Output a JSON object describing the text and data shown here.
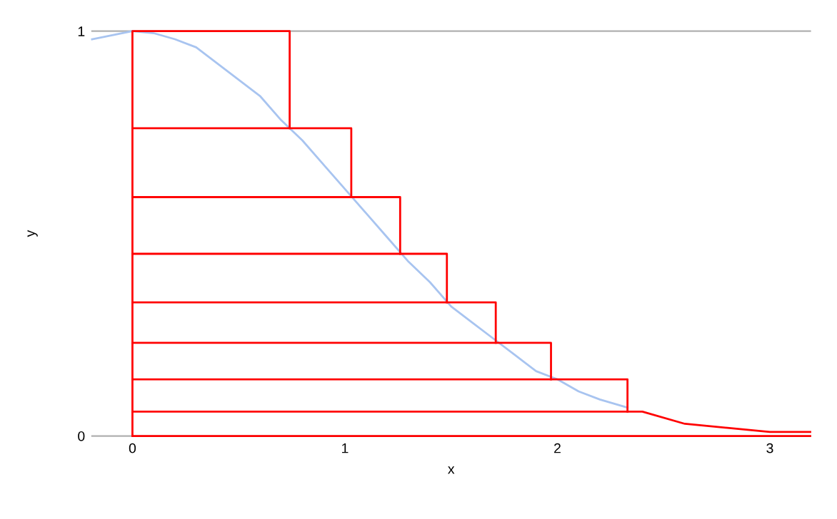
{
  "chart_data": {
    "type": "line",
    "xlabel": "x",
    "ylabel": "y",
    "xlim": [
      -0.19,
      3.19
    ],
    "ylim": [
      0,
      1
    ],
    "xticks": [
      0,
      1,
      2,
      3
    ],
    "yticks": [
      0,
      1
    ],
    "legend": false,
    "marker": "none",
    "line_style": "solid",
    "series": [
      {
        "color": "#a8c4f0",
        "x": [
          -0.19,
          0,
          0.1,
          0.2,
          0.3,
          0.4,
          0.5,
          0.6,
          0.7,
          0.8,
          0.9,
          1.0,
          1.1,
          1.2,
          1.3,
          1.4,
          1.5,
          1.6,
          1.7,
          1.8,
          1.9,
          2.0,
          2.1,
          2.2,
          2.33
        ],
        "values": [
          0.98,
          1,
          0.995,
          0.98,
          0.96,
          0.92,
          0.88,
          0.84,
          0.78,
          0.73,
          0.67,
          0.61,
          0.55,
          0.49,
          0.43,
          0.38,
          0.32,
          0.28,
          0.24,
          0.2,
          0.16,
          0.14,
          0.11,
          0.09,
          0.07
        ]
      },
      {
        "color": "#ff0000",
        "x": [
          0,
          0,
          0.74,
          0.74
        ],
        "values": [
          0.76,
          1,
          1,
          0.76
        ]
      },
      {
        "color": "#ff0000",
        "x": [
          0,
          0,
          1.03,
          1.03
        ],
        "values": [
          0.59,
          0.76,
          0.76,
          0.59
        ]
      },
      {
        "color": "#ff0000",
        "x": [
          0,
          0,
          1.26,
          1.26
        ],
        "values": [
          0.45,
          0.59,
          0.59,
          0.45
        ]
      },
      {
        "color": "#ff0000",
        "x": [
          0,
          0,
          1.48,
          1.48
        ],
        "values": [
          0.33,
          0.45,
          0.45,
          0.33
        ]
      },
      {
        "color": "#ff0000",
        "x": [
          0,
          0,
          1.71,
          1.71
        ],
        "values": [
          0.23,
          0.33,
          0.33,
          0.23
        ]
      },
      {
        "color": "#ff0000",
        "x": [
          0,
          0,
          1.97,
          1.97
        ],
        "values": [
          0.14,
          0.23,
          0.23,
          0.14
        ]
      },
      {
        "color": "#ff0000",
        "x": [
          0,
          0,
          2.33,
          2.33
        ],
        "values": [
          0.06,
          0.14,
          0.14,
          0.06
        ]
      },
      {
        "color": "#ff0000",
        "x": [
          0,
          0,
          2.33,
          2.4,
          2.6,
          2.8,
          3.0,
          3.19
        ],
        "values": [
          0,
          0.06,
          0.06,
          0.06,
          0.03,
          0.02,
          0.01,
          0.01
        ]
      },
      {
        "color": "#ff0000",
        "x": [
          0,
          3.19
        ],
        "values": [
          0,
          0
        ]
      }
    ]
  }
}
